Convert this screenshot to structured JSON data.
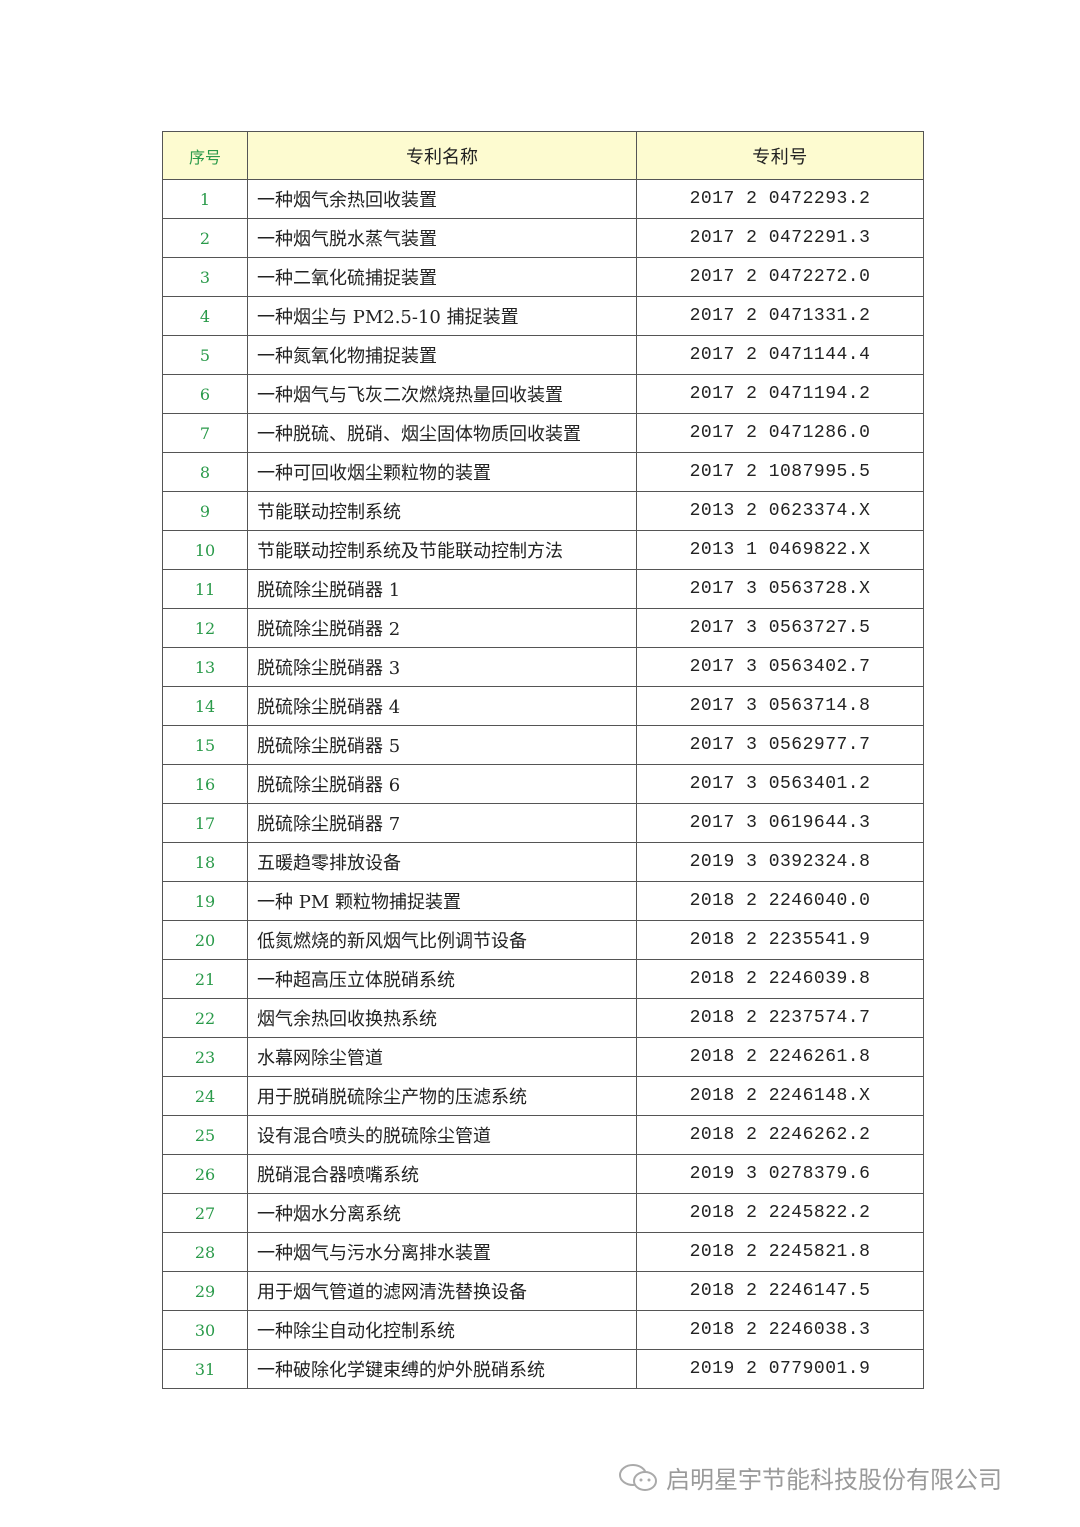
{
  "table": {
    "headers": [
      "序号",
      "专利名称",
      "专利号"
    ],
    "rows": [
      [
        "1",
        "一种烟气余热回收装置",
        "2017 2 0472293.2"
      ],
      [
        "2",
        "一种烟气脱水蒸气装置",
        "2017 2 0472291.3"
      ],
      [
        "3",
        "一种二氧化硫捕捉装置",
        "2017 2 0472272.0"
      ],
      [
        "4",
        "一种烟尘与 PM2.5-10 捕捉装置",
        "2017 2 0471331.2"
      ],
      [
        "5",
        "一种氮氧化物捕捉装置",
        "2017 2 0471144.4"
      ],
      [
        "6",
        "一种烟气与飞灰二次燃烧热量回收装置",
        "2017 2 0471194.2"
      ],
      [
        "7",
        "一种脱硫、脱硝、烟尘固体物质回收装置",
        "2017 2 0471286.0"
      ],
      [
        "8",
        "一种可回收烟尘颗粒物的装置",
        "2017 2 1087995.5"
      ],
      [
        "9",
        "节能联动控制系统",
        "2013 2 0623374.X"
      ],
      [
        "10",
        "节能联动控制系统及节能联动控制方法",
        "2013 1 0469822.X"
      ],
      [
        "11",
        "脱硫除尘脱硝器 1",
        "2017 3 0563728.X"
      ],
      [
        "12",
        "脱硫除尘脱硝器 2",
        "2017 3 0563727.5"
      ],
      [
        "13",
        "脱硫除尘脱硝器 3",
        "2017 3 0563402.7"
      ],
      [
        "14",
        "脱硫除尘脱硝器 4",
        "2017 3 0563714.8"
      ],
      [
        "15",
        "脱硫除尘脱硝器 5",
        "2017 3 0562977.7"
      ],
      [
        "16",
        "脱硫除尘脱硝器 6",
        "2017 3 0563401.2"
      ],
      [
        "17",
        "脱硫除尘脱硝器 7",
        "2017 3 0619644.3"
      ],
      [
        "18",
        "五暖趋零排放设备",
        "2019 3 0392324.8"
      ],
      [
        "19",
        "一种 PM 颗粒物捕捉装置",
        "2018 2 2246040.0"
      ],
      [
        "20",
        "低氮燃烧的新风烟气比例调节设备",
        "2018 2 2235541.9"
      ],
      [
        "21",
        "一种超高压立体脱硝系统",
        "2018 2 2246039.8"
      ],
      [
        "22",
        "烟气余热回收换热系统",
        "2018 2 2237574.7"
      ],
      [
        "23",
        "水幕网除尘管道",
        "2018 2 2246261.8"
      ],
      [
        "24",
        "用于脱硝脱硫除尘产物的压滤系统",
        "2018 2 2246148.X"
      ],
      [
        "25",
        "设有混合喷头的脱硫除尘管道",
        "2018 2 2246262.2"
      ],
      [
        "26",
        "脱硝混合器喷嘴系统",
        "2019 3 0278379.6"
      ],
      [
        "27",
        "一种烟水分离系统",
        "2018 2 2245822.2"
      ],
      [
        "28",
        "一种烟气与污水分离排水装置",
        "2018 2 2245821.8"
      ],
      [
        "29",
        "用于烟气管道的滤网清洗替换设备",
        "2018 2 2246147.5"
      ],
      [
        "30",
        "一种除尘自动化控制系统",
        "2018 2 2246038.3"
      ],
      [
        "31",
        "一种破除化学键束缚的炉外脱硝系统",
        "2019 2 0779001.9"
      ]
    ]
  },
  "watermark": {
    "icon": "wechat-icon",
    "text": "启明星宇节能科技股份有限公司"
  },
  "colors": {
    "header_bg": "#fdfbd0",
    "index_text": "#2a9a4a"
  }
}
